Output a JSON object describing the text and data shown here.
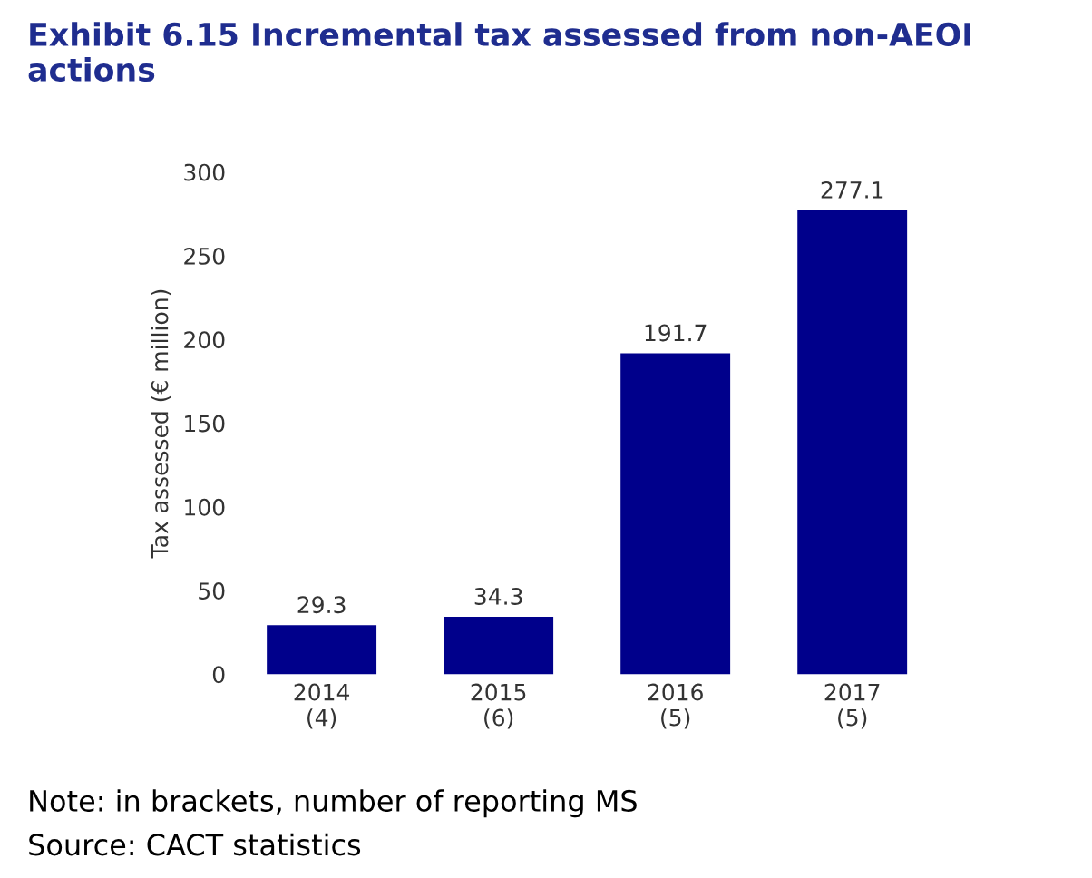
{
  "chart_data": {
    "type": "bar",
    "title": "Exhibit 6.15 Incremental tax assessed from non-AEOI actions",
    "ylabel": "Tax assessed (€ million)",
    "categories": [
      "2014\n(4)",
      "2015\n(6)",
      "2016\n(5)",
      "2017\n(5)"
    ],
    "values": [
      29.3,
      34.3,
      191.7,
      277.1
    ],
    "color": "#00008b",
    "ylim": [
      0,
      300
    ],
    "yticks": [
      0,
      50,
      100,
      150,
      200,
      250,
      300
    ],
    "data_labels": true,
    "grid": false,
    "annotations": [
      "Note: in brackets, number of reporting MS",
      "Source: CACT statistics"
    ]
  }
}
